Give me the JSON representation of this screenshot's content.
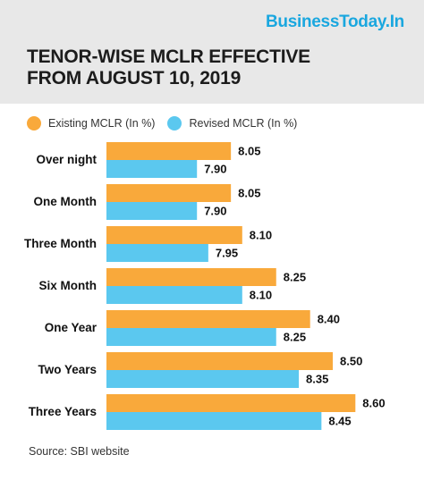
{
  "header": {
    "brand": "BusinessToday.In",
    "title_line1": "TENOR-WISE MCLR EFFECTIVE",
    "title_line2": "FROM AUGUST 10, 2019"
  },
  "source": "Source: SBI website",
  "colors": {
    "existing": "#f9a93b",
    "revised": "#5bc8ef",
    "brand": "#1aa7df",
    "header_bg": "#e8e8e8"
  },
  "chart_data": {
    "type": "bar",
    "orientation": "horizontal",
    "title": "TENOR-WISE MCLR EFFECTIVE FROM AUGUST 10, 2019",
    "categories": [
      "Over night",
      "One Month",
      "Three Month",
      "Six Month",
      "One Year",
      "Two Years",
      "Three Years"
    ],
    "series": [
      {
        "name": "Existing MCLR (In %)",
        "values": [
          8.05,
          8.05,
          8.1,
          8.25,
          8.4,
          8.5,
          8.6
        ]
      },
      {
        "name": "Revised MCLR (In %)",
        "values": [
          7.9,
          7.9,
          7.95,
          8.1,
          8.25,
          8.35,
          8.45
        ]
      }
    ],
    "value_labels": [
      [
        "8.05",
        "8.05",
        "8.10",
        "8.25",
        "8.40",
        "8.50",
        "8.60"
      ],
      [
        "7.90",
        "7.90",
        "7.95",
        "8.10",
        "8.25",
        "8.35",
        "8.45"
      ]
    ],
    "xlim": [
      7.5,
      8.65
    ],
    "legend_position": "top-left",
    "grid": false
  }
}
